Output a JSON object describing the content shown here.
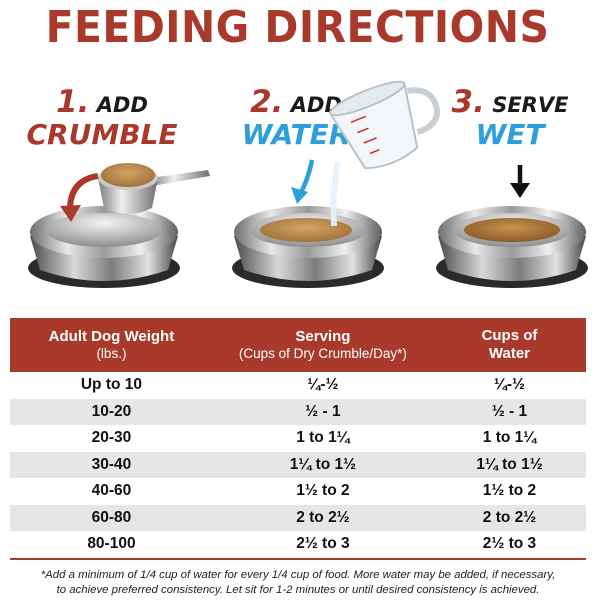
{
  "title": "FEEDING DIRECTIONS",
  "steps": [
    {
      "number": "1.",
      "line1": "ADD",
      "line2": "CRUMBLE",
      "color": "#a93a2b"
    },
    {
      "number": "2.",
      "line1": "ADD",
      "line2": "WATER",
      "color": "#2f9fdc"
    },
    {
      "number": "3.",
      "line1": "SERVE",
      "line2": "WET",
      "color": "#2f9fdc"
    }
  ],
  "table": {
    "headers": [
      {
        "main": "Adult Dog Weight",
        "sub": "(lbs.)"
      },
      {
        "main": "Serving",
        "sub": "(Cups of Dry Crumble/Day*)"
      },
      {
        "main": "Cups of",
        "sub": "Water"
      }
    ],
    "rows": [
      [
        "Up to 10",
        "¼-½",
        "¼-½"
      ],
      [
        "10-20",
        "½ - 1",
        "½ - 1"
      ],
      [
        "20-30",
        "1 to 1¼",
        "1 to 1¼"
      ],
      [
        "30-40",
        "1¼ to 1½",
        "1¼ to 1½"
      ],
      [
        "40-60",
        "1½ to 2",
        "1½ to 2"
      ],
      [
        "60-80",
        "2 to 2½",
        "2 to 2½"
      ],
      [
        "80-100",
        "2½ to 3",
        "2½ to 3"
      ]
    ]
  },
  "footnote": {
    "line1": "*Add a minimum of 1/4 cup of water for every 1/4 cup of food. More water may be added, if necessary,",
    "line2": "to achieve preferred consistency. Let sit for 1-2 minutes or until desired consistency is achieved."
  },
  "colors": {
    "brand_red": "#a93a2b",
    "accent_blue": "#2f9fdc",
    "row_alt": "#e6e6e6"
  },
  "icons": [
    "scoop-icon",
    "measuring-cup-icon",
    "bowl-icon",
    "arrow-down-icon",
    "curved-arrow-icon"
  ]
}
